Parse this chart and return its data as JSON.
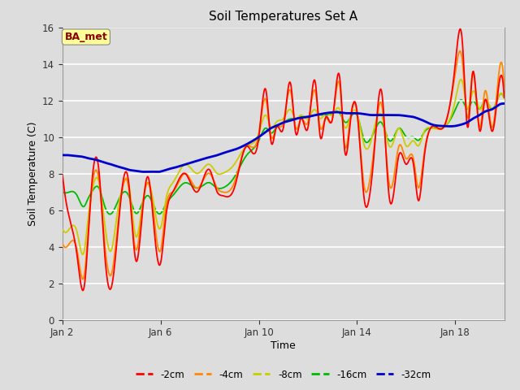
{
  "title": "Soil Temperatures Set A",
  "xlabel": "Time",
  "ylabel": "Soil Temperature (C)",
  "ylim": [
    0,
    16
  ],
  "yticks": [
    0,
    2,
    4,
    6,
    8,
    10,
    12,
    14,
    16
  ],
  "annotation_text": "BA_met",
  "annotation_color": "#8B0000",
  "annotation_bg": "#FFFF99",
  "bg_color": "#D8D8D8",
  "legend_entries": [
    "-2cm",
    "-4cm",
    "-8cm",
    "-16cm",
    "-32cm"
  ],
  "line_colors": [
    "#FF0000",
    "#FF8800",
    "#CCCC00",
    "#00BB00",
    "#0000CC"
  ],
  "xtick_labels": [
    "Jan 2",
    "Jan 6",
    "Jan 10",
    "Jan 14",
    "Jan 18"
  ],
  "xtick_positions": [
    0,
    4,
    8,
    12,
    16
  ],
  "xlim": [
    0,
    18
  ]
}
